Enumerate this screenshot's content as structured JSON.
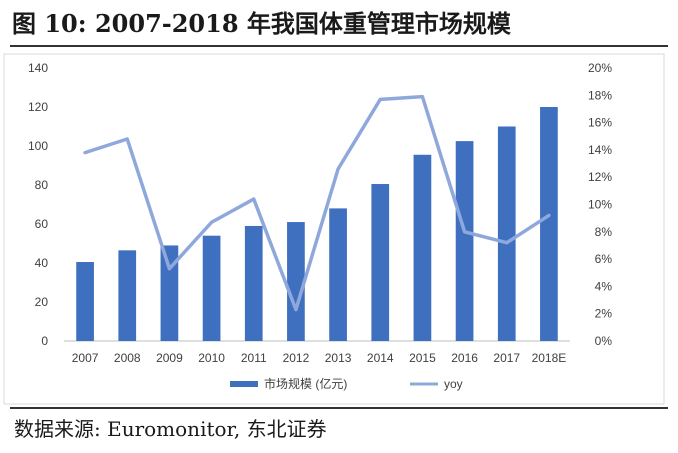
{
  "header": {
    "title": "图  10:  2007-2018 年我国体重管理市场规模"
  },
  "footer": {
    "source": "数据来源: Euromonitor, 东北证券"
  },
  "chart_data": {
    "type": "bar",
    "title": "2007-2018 年我国体重管理市场规模",
    "categories": [
      "2007",
      "2008",
      "2009",
      "2010",
      "2011",
      "2012",
      "2013",
      "2014",
      "2015",
      "2016",
      "2017",
      "2018E"
    ],
    "series": [
      {
        "name": "市场规模 (亿元)",
        "type": "bar",
        "axis": "left",
        "color": "#3F6FBF",
        "values": [
          40.5,
          46.5,
          49,
          54,
          59,
          61,
          68,
          80.5,
          95.5,
          102.5,
          110,
          120
        ]
      },
      {
        "name": "yoy",
        "type": "line",
        "axis": "right",
        "color": "#8FA8DC",
        "values": [
          13.8,
          14.8,
          5.3,
          8.7,
          10.4,
          2.3,
          12.6,
          17.7,
          17.9,
          8.0,
          7.2,
          9.2
        ]
      }
    ],
    "ylim_left": [
      0,
      140
    ],
    "yticks_left": [
      "0",
      "20",
      "40",
      "60",
      "80",
      "100",
      "120",
      "140"
    ],
    "ylim_right": [
      0,
      20
    ],
    "yticks_right": [
      "0%",
      "2%",
      "4%",
      "6%",
      "8%",
      "10%",
      "12%",
      "14%",
      "16%",
      "18%",
      "20%"
    ],
    "grid": false,
    "legend": "bottom-center"
  }
}
